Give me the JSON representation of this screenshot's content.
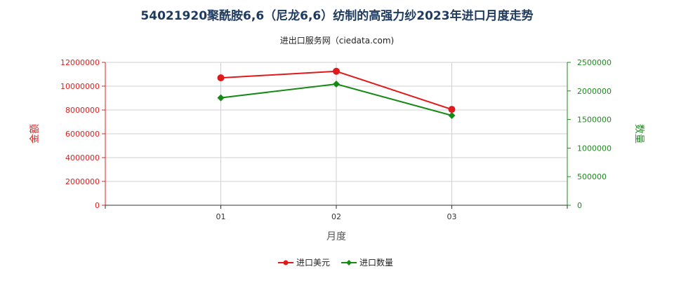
{
  "chart_data": {
    "type": "line",
    "title": "54021920聚酰胺6,6（尼龙6,6）纺制的高强力纱2023年进口月度走势",
    "subtitle": "进出口服务网（ciedata.com)",
    "xlabel": "月度",
    "ylabel_left": "金额",
    "ylabel_right": "数量",
    "categories": [
      "01",
      "02",
      "03"
    ],
    "y_left_ticks": [
      "0",
      "2000000",
      "4000000",
      "6000000",
      "8000000",
      "10000000",
      "12000000"
    ],
    "y_right_ticks": [
      "0",
      "500000",
      "1000000",
      "1500000",
      "2000000",
      "2500000"
    ],
    "ylim_left": [
      0,
      12000000
    ],
    "ylim_right": [
      0,
      2500000
    ],
    "grid": true,
    "legend_position": "bottom",
    "series": [
      {
        "name": "进口美元",
        "axis": "left",
        "color": "#e01a1a",
        "marker": "circle",
        "values": [
          10700000,
          11250000,
          8050000
        ]
      },
      {
        "name": "进口数量",
        "axis": "right",
        "color": "#158a15",
        "marker": "diamond",
        "values": [
          1880000,
          2120000,
          1570000
        ]
      }
    ]
  }
}
